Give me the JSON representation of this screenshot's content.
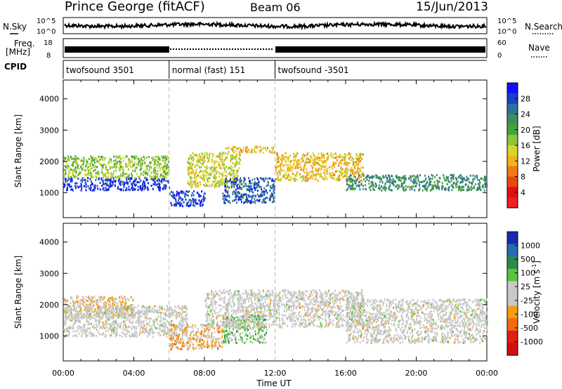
{
  "header": {
    "station": "Prince George (fitACF)",
    "beam": "Beam 06",
    "date": "15/Jun/2013"
  },
  "panels": {
    "noise": {
      "left_label": "N.Sky",
      "right_label": "N.Search",
      "left_ticks": [
        "10^5",
        "10^0"
      ],
      "right_ticks": [
        "10^5",
        "10^0"
      ]
    },
    "freq": {
      "left_label_1": "Freq.",
      "left_label_2": "[MHz]",
      "left_ticks": [
        "18",
        "8"
      ],
      "right_label": "Nave",
      "right_ticks": [
        "60",
        "0"
      ]
    },
    "cpid": {
      "label": "CPID",
      "segments": [
        {
          "text": "twofsound 3501",
          "start_ut": 0,
          "end_ut": 6
        },
        {
          "text": "normal (fast) 151",
          "start_ut": 6,
          "end_ut": 12
        },
        {
          "text": "twofsound -3501",
          "start_ut": 12,
          "end_ut": 24
        }
      ]
    }
  },
  "x_axis": {
    "title": "Time UT",
    "ticks": [
      "00:00",
      "04:00",
      "08:00",
      "12:00",
      "16:00",
      "20:00",
      "00:00"
    ]
  },
  "power_colorbar": {
    "title": "Power [dB]",
    "ticks": [
      "28",
      "24",
      "20",
      "16",
      "12",
      "8",
      "4"
    ],
    "colors": [
      "#1010ff",
      "#1a3fc8",
      "#2f6fa0",
      "#3c8f5a",
      "#44a33a",
      "#8cc43a",
      "#d6d62a",
      "#f2b21c",
      "#f07a14",
      "#e84810",
      "#e01010",
      "#f02020"
    ]
  },
  "velocity_colorbar": {
    "title": "Velocity [m s^-1]",
    "ticks": [
      "1000",
      "500",
      "100",
      "25",
      "-25",
      "-100",
      "-500",
      "-1000"
    ],
    "colors": [
      "#1a2ab0",
      "#2a6ab0",
      "#2a8a4a",
      "#5ac43a",
      "#c8c8c8",
      "#c8c8c8",
      "#f2a012",
      "#f06a10",
      "#e02010",
      "#d01010"
    ]
  },
  "chart_data": [
    {
      "type": "heatmap",
      "title": "Power",
      "xlabel": "Time UT",
      "ylabel": "Slant Range [km]",
      "xlim": [
        0,
        24
      ],
      "ylim": [
        200,
        4600
      ],
      "y_ticks": [
        1000,
        2000,
        3000,
        4000
      ],
      "colorbar_label": "Power [dB]",
      "colorbar_range": [
        0,
        30
      ],
      "dominant_echo_bands": [
        {
          "t": [
            0,
            6
          ],
          "range_km": [
            1100,
            1500
          ],
          "power_db": 28
        },
        {
          "t": [
            0,
            6
          ],
          "range_km": [
            1500,
            2200
          ],
          "power_db": 16
        },
        {
          "t": [
            6,
            8
          ],
          "range_km": [
            600,
            1100
          ],
          "power_db": 28
        },
        {
          "t": [
            7,
            10
          ],
          "range_km": [
            1200,
            2300
          ],
          "power_db": 14
        },
        {
          "t": [
            9,
            12
          ],
          "range_km": [
            700,
            1500
          ],
          "power_db": 26
        },
        {
          "t": [
            9,
            12
          ],
          "range_km": [
            2300,
            2500
          ],
          "power_db": 12
        },
        {
          "t": [
            12,
            17
          ],
          "range_km": [
            1400,
            2300
          ],
          "power_db": 12
        },
        {
          "t": [
            16,
            24
          ],
          "range_km": [
            1100,
            1600
          ],
          "power_db": 22
        }
      ]
    },
    {
      "type": "heatmap",
      "title": "Velocity",
      "xlabel": "Time UT",
      "ylabel": "Slant Range [km]",
      "xlim": [
        0,
        24
      ],
      "ylim": [
        200,
        4600
      ],
      "y_ticks": [
        1000,
        2000,
        3000,
        4000
      ],
      "colorbar_label": "Velocity [m s^-1]",
      "colorbar_range": [
        -1000,
        1000
      ],
      "dominant_echo_bands": [
        {
          "t": [
            0,
            4
          ],
          "range_km": [
            1600,
            2300
          ],
          "velocity": -150
        },
        {
          "t": [
            0,
            7
          ],
          "range_km": [
            1000,
            2000
          ],
          "velocity": 0
        },
        {
          "t": [
            6,
            9
          ],
          "range_km": [
            600,
            1400
          ],
          "velocity": -250
        },
        {
          "t": [
            9,
            11.5
          ],
          "range_km": [
            800,
            1700
          ],
          "velocity": 300
        },
        {
          "t": [
            8,
            17
          ],
          "range_km": [
            1300,
            2500
          ],
          "velocity": 0
        },
        {
          "t": [
            16,
            24
          ],
          "range_km": [
            800,
            2200
          ],
          "velocity": 0
        }
      ]
    }
  ]
}
